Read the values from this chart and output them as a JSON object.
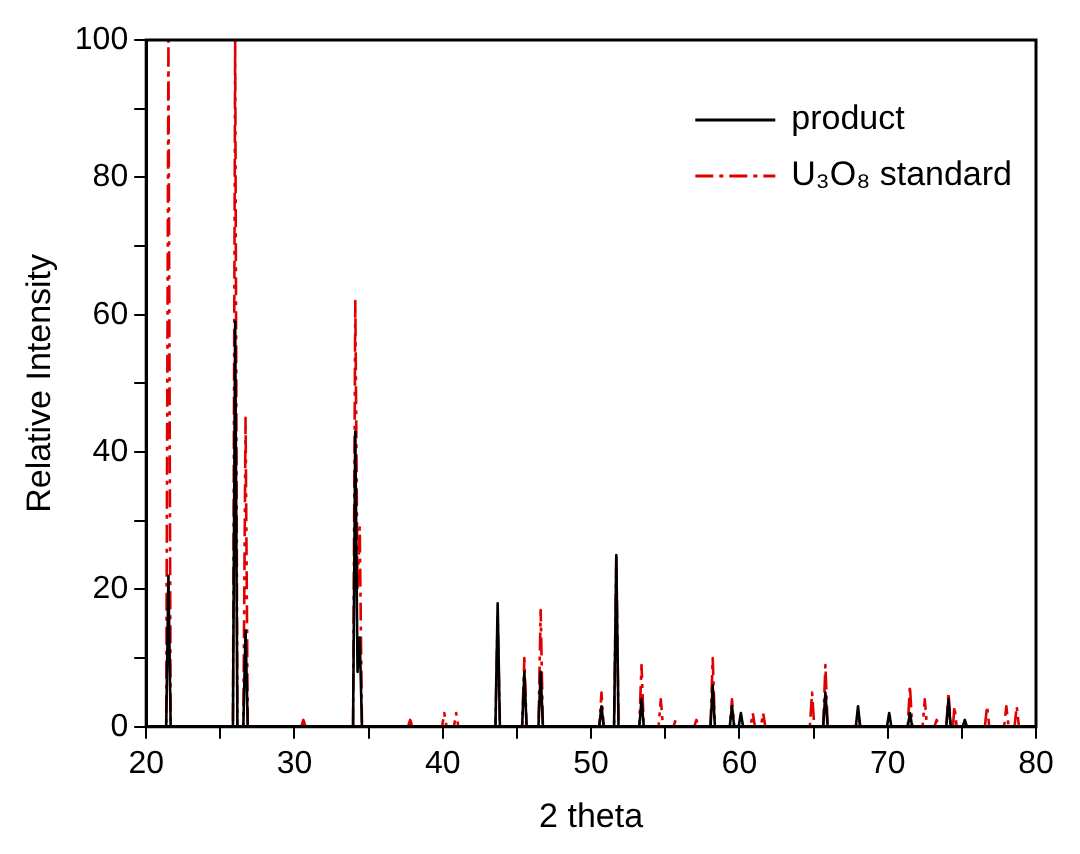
{
  "chart_data": {
    "type": "line",
    "xlabel": "2 theta",
    "ylabel": "Relative Intensity",
    "xlim": [
      20,
      80
    ],
    "xticks": [
      20,
      {
        "value": 25,
        "label": null
      },
      30,
      {
        "value": 35,
        "label": null
      },
      40,
      {
        "value": 45,
        "label": null
      },
      50,
      {
        "value": 55,
        "label": null
      },
      60,
      {
        "value": 65,
        "label": null
      },
      70,
      {
        "value": 75,
        "label": null
      },
      80
    ],
    "ylim": [
      0,
      100
    ],
    "yticks": [
      0,
      {
        "value": 10,
        "label": null
      },
      20,
      {
        "value": 30,
        "label": null
      },
      40,
      {
        "value": 50,
        "label": null
      },
      60,
      {
        "value": 70,
        "label": null
      },
      80,
      {
        "value": 90,
        "label": null
      },
      100
    ],
    "grid": false,
    "legend": "top right",
    "marker": "none",
    "series": [
      {
        "name": "product",
        "color": "#000000",
        "line_style": "solid",
        "x": [
          20,
          21.35,
          21.5,
          21.65,
          25.85,
          26.0,
          26.15,
          26.55,
          26.7,
          26.85,
          33.95,
          34.1,
          34.25,
          34.4,
          34.55,
          43.55,
          43.7,
          43.85,
          45.35,
          45.5,
          45.65,
          46.45,
          46.6,
          46.75,
          50.55,
          50.7,
          50.85,
          51.55,
          51.7,
          51.85,
          53.25,
          53.4,
          53.55,
          58.05,
          58.2,
          58.35,
          59.35,
          59.5,
          59.65,
          59.95,
          60.1,
          60.25,
          65.65,
          65.8,
          65.95,
          67.85,
          68.0,
          68.15,
          69.95,
          70.1,
          70.25,
          71.35,
          71.5,
          71.65,
          73.95,
          74.1,
          74.25,
          75.05,
          75.2,
          75.35,
          80
        ],
        "values": [
          0,
          0,
          22,
          0,
          0,
          59,
          0,
          0,
          14,
          0,
          0,
          43,
          8,
          13,
          0,
          0,
          18,
          0,
          0,
          8,
          0,
          0,
          8,
          0,
          0,
          3,
          0,
          0,
          25,
          0,
          0,
          4,
          0,
          0,
          6,
          0,
          0,
          3,
          0,
          0,
          2,
          0,
          0,
          5,
          0,
          0,
          3,
          0,
          0,
          2,
          0,
          0,
          2,
          0,
          0,
          4,
          0,
          0,
          1,
          0,
          0
        ]
      },
      {
        "name": "U₃O₈ standard",
        "color": "#e00000",
        "line_style": "dashed",
        "x": [
          20,
          21.35,
          21.5,
          21.65,
          25.85,
          26.0,
          26.15,
          26.55,
          26.7,
          26.85,
          30.45,
          30.6,
          30.75,
          33.95,
          34.1,
          34.25,
          34.4,
          34.55,
          37.65,
          37.8,
          37.95,
          39.95,
          40.1,
          40.25,
          40.75,
          40.9,
          41.05,
          43.55,
          43.7,
          43.85,
          45.35,
          45.5,
          45.65,
          46.45,
          46.6,
          46.75,
          50.55,
          50.7,
          50.85,
          51.55,
          51.7,
          51.85,
          53.25,
          53.4,
          53.55,
          54.55,
          54.7,
          54.85,
          55.55,
          55.7,
          55.85,
          56.95,
          57.1,
          57.25,
          58.05,
          58.2,
          58.35,
          59.35,
          59.5,
          59.65,
          60.75,
          60.9,
          61.05,
          61.45,
          61.6,
          61.75,
          64.75,
          64.9,
          65.05,
          65.65,
          65.8,
          65.95,
          67.85,
          68.0,
          68.15,
          71.35,
          71.5,
          71.65,
          72.35,
          72.5,
          72.65,
          73.15,
          73.3,
          73.45,
          73.95,
          74.1,
          74.25,
          74.4,
          74.5,
          74.65,
          76.55,
          76.7,
          76.85,
          77.85,
          78.0,
          78.15,
          78.55,
          78.7,
          78.85,
          80
        ],
        "values": [
          0,
          0,
          100,
          0,
          0,
          100,
          0,
          0,
          45,
          0,
          0,
          1,
          0,
          0,
          62,
          20,
          29,
          0,
          0,
          1,
          0,
          0,
          2,
          0,
          0,
          2,
          0,
          0,
          16,
          0,
          0,
          10,
          0,
          0,
          17,
          0,
          0,
          5,
          0,
          0,
          25,
          0,
          0,
          9,
          0,
          0,
          4,
          0,
          0,
          1,
          0,
          0,
          1,
          0,
          0,
          10,
          0,
          0,
          4,
          0,
          0,
          2,
          0,
          0,
          2,
          0,
          0,
          5,
          0,
          0,
          9,
          0,
          0,
          2,
          0,
          0,
          6,
          0,
          0,
          4,
          0,
          0,
          1,
          0,
          0,
          5,
          0,
          0,
          3,
          0,
          0,
          3,
          0,
          0,
          3,
          0,
          0,
          3,
          0,
          0
        ]
      }
    ]
  }
}
